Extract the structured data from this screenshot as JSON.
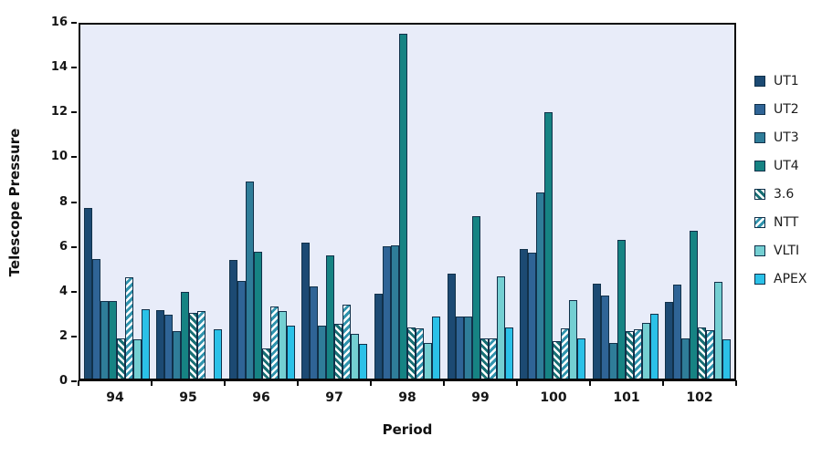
{
  "chart_data": {
    "type": "bar",
    "title": "",
    "xlabel": "Period",
    "ylabel": "Telescope Pressure",
    "ylim": [
      0,
      16
    ],
    "yticks": [
      0,
      2,
      4,
      6,
      8,
      10,
      12,
      14,
      16
    ],
    "grid": false,
    "legend_position": "right-outside",
    "plot_background": "#e8ecf9",
    "categories": [
      "94",
      "95",
      "96",
      "97",
      "98",
      "99",
      "100",
      "101",
      "102"
    ],
    "series": [
      {
        "name": "UT1",
        "color": "#1c4a73",
        "pattern": "solid",
        "values": [
          7.6,
          3.05,
          5.3,
          6.05,
          3.8,
          4.7,
          5.8,
          4.25,
          3.4
        ]
      },
      {
        "name": "UT2",
        "color": "#2f6496",
        "pattern": "solid",
        "values": [
          5.35,
          2.85,
          4.35,
          4.1,
          5.9,
          2.75,
          5.6,
          3.7,
          4.2
        ]
      },
      {
        "name": "UT3",
        "color": "#2f7d99",
        "pattern": "solid",
        "values": [
          3.45,
          2.1,
          8.8,
          2.35,
          5.95,
          2.75,
          8.3,
          1.6,
          1.8
        ]
      },
      {
        "name": "UT4",
        "color": "#168383",
        "pattern": "solid",
        "values": [
          3.45,
          3.85,
          5.65,
          5.5,
          15.4,
          7.25,
          11.9,
          6.2,
          6.6
        ]
      },
      {
        "name": "3.6",
        "color": "#176f74",
        "pattern": "hatch-fwd",
        "values": [
          1.8,
          2.95,
          1.35,
          2.45,
          2.3,
          1.8,
          1.65,
          2.1,
          2.3
        ]
      },
      {
        "name": "NTT",
        "color": "#2f93ad",
        "pattern": "hatch-back",
        "values": [
          4.5,
          3.0,
          3.2,
          3.3,
          2.25,
          1.8,
          2.25,
          2.2,
          2.15
        ]
      },
      {
        "name": "VLTI",
        "color": "#74cfd2",
        "pattern": "solid",
        "values": [
          1.75,
          0,
          3.0,
          2.0,
          1.6,
          4.55,
          3.5,
          2.5,
          4.3
        ]
      },
      {
        "name": "APEX",
        "color": "#2bc1e8",
        "pattern": "solid",
        "values": [
          3.1,
          2.2,
          2.35,
          1.55,
          2.75,
          2.3,
          1.8,
          2.9,
          1.75
        ]
      }
    ]
  }
}
